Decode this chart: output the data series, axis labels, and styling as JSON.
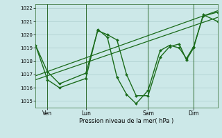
{
  "xlabel": "Pression niveau de la mer( hPa )",
  "bg_color": "#cce8e8",
  "line_color": "#1a6b1a",
  "grid_color": "#aacccc",
  "ylim": [
    1014.5,
    1022.3
  ],
  "xlim": [
    0,
    76
  ],
  "yticks": [
    1015,
    1016,
    1017,
    1018,
    1019,
    1020,
    1021,
    1022
  ],
  "xtick_positions": [
    5,
    21,
    47,
    66
  ],
  "xtick_labels": [
    "Ven",
    "Lun",
    "Sam",
    "Dim"
  ],
  "vline_positions": [
    5,
    21,
    47,
    66
  ],
  "jagged1_x": [
    0,
    5,
    10,
    21,
    26,
    30,
    34,
    38,
    42,
    47,
    52,
    56,
    60,
    63,
    66,
    70,
    76
  ],
  "jagged1_y": [
    1019.2,
    1017.2,
    1016.3,
    1017.1,
    1020.3,
    1020.0,
    1019.6,
    1017.0,
    1015.4,
    1015.4,
    1018.3,
    1019.1,
    1019.3,
    1018.1,
    1019.0,
    1021.5,
    1021.0
  ],
  "jagged2_x": [
    0,
    5,
    10,
    21,
    26,
    30,
    34,
    38,
    42,
    47,
    52,
    56,
    60,
    63,
    66,
    70,
    76
  ],
  "jagged2_y": [
    1019.2,
    1016.6,
    1016.0,
    1016.7,
    1020.4,
    1019.8,
    1016.8,
    1015.5,
    1014.8,
    1015.8,
    1018.8,
    1019.2,
    1019.0,
    1018.2,
    1019.1,
    1021.4,
    1021.7
  ],
  "trend1_x": [
    0,
    76
  ],
  "trend1_y": [
    1016.6,
    1021.3
  ],
  "trend2_x": [
    0,
    76
  ],
  "trend2_y": [
    1016.9,
    1021.8
  ]
}
